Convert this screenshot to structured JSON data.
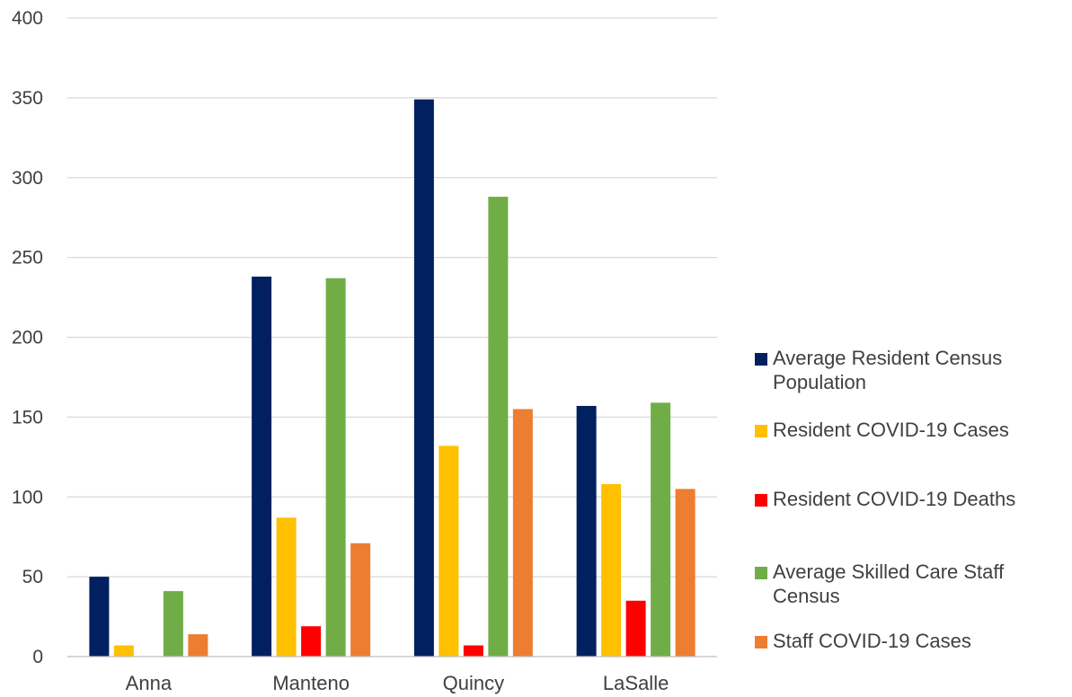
{
  "chart_data": {
    "type": "bar",
    "categories": [
      "Anna",
      "Manteno",
      "Quincy",
      "LaSalle"
    ],
    "series": [
      {
        "name": "Average Resident Census Population",
        "color": "#002060",
        "values": [
          50,
          238,
          349,
          157
        ]
      },
      {
        "name": "Resident COVID-19 Cases",
        "color": "#ffc000",
        "values": [
          7,
          87,
          132,
          108
        ]
      },
      {
        "name": "Resident COVID-19 Deaths",
        "color": "#ff0000",
        "values": [
          0,
          19,
          7,
          35
        ]
      },
      {
        "name": "Average Skilled Care Staff Census",
        "color": "#70ad47",
        "values": [
          41,
          237,
          288,
          159
        ]
      },
      {
        "name": "Staff COVID-19 Cases",
        "color": "#ed7d31",
        "values": [
          14,
          71,
          155,
          105
        ]
      }
    ],
    "ylim": [
      0,
      400
    ],
    "yticks": [
      "0",
      "50",
      "100",
      "150",
      "200",
      "250",
      "300",
      "350",
      "400"
    ],
    "grid": true,
    "legend_position": "right",
    "title": "",
    "xlabel": "",
    "ylabel": ""
  }
}
